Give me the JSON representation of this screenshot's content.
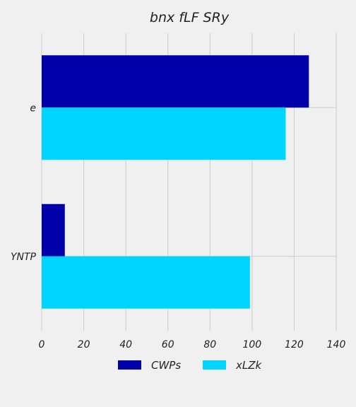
{
  "chart_data": {
    "type": "bar",
    "orientation": "horizontal",
    "title": "bnx fLF SRy",
    "xlabel": "",
    "ylabel": "",
    "categories": [
      "e",
      "YNTP"
    ],
    "series": [
      {
        "name": "CWPs",
        "values": [
          127,
          11
        ],
        "color": "#0000aa"
      },
      {
        "name": "xLZk",
        "values": [
          116,
          99
        ],
        "color": "#00d5ff"
      }
    ],
    "xlim": [
      0,
      140
    ],
    "xticks": [
      0,
      20,
      40,
      60,
      80,
      100,
      120,
      140
    ],
    "grid": true,
    "legend_position": "bottom"
  }
}
